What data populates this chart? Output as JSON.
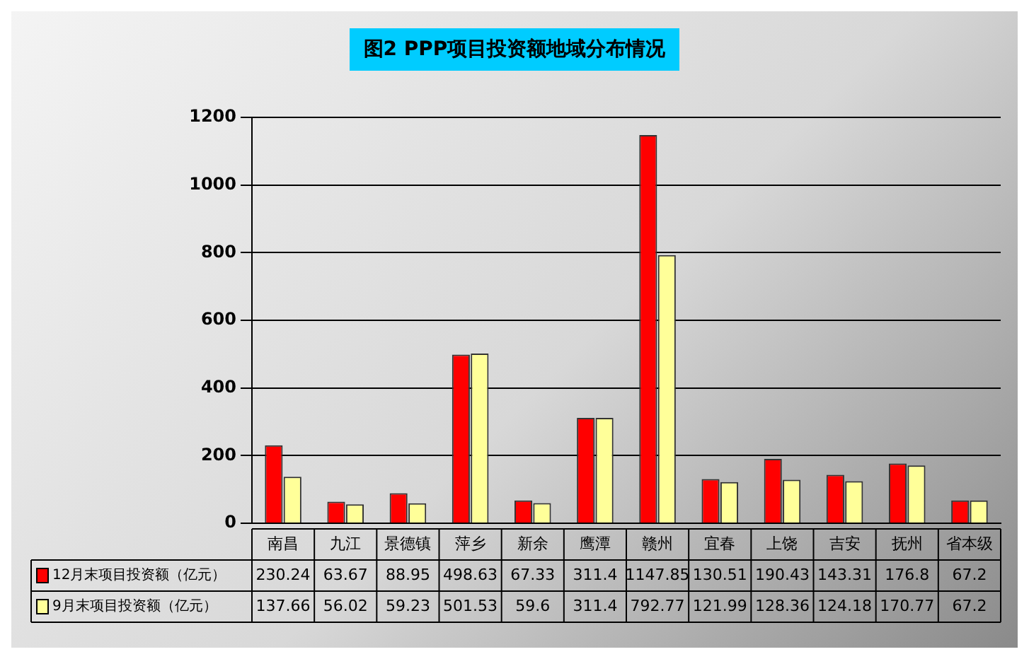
{
  "chart_data": {
    "type": "bar",
    "title": "图2 PPP项目投资额地域分布情况",
    "categories": [
      "南昌",
      "九江",
      "景德镇",
      "萍乡",
      "新余",
      "鹰潭",
      "赣州",
      "宜春",
      "上饶",
      "吉安",
      "抚州",
      "省本级"
    ],
    "series": [
      {
        "name": "12月末项目投资额（亿元）",
        "color": "#ff0000",
        "values": [
          230.24,
          63.67,
          88.95,
          498.63,
          67.33,
          311.4,
          1147.85,
          130.51,
          190.43,
          143.31,
          176.8,
          67.2
        ]
      },
      {
        "name": "9月末项目投资额（亿元）",
        "color": "#ffff99",
        "values": [
          137.66,
          56.02,
          59.23,
          501.53,
          59.6,
          311.4,
          792.77,
          121.99,
          128.36,
          124.18,
          170.77,
          67.2
        ]
      }
    ],
    "ylim": [
      0,
      1200
    ],
    "yticks": [
      0,
      200,
      400,
      600,
      800,
      1000,
      1200
    ],
    "grid": "y",
    "legend": "bottom",
    "data_labels": true
  }
}
